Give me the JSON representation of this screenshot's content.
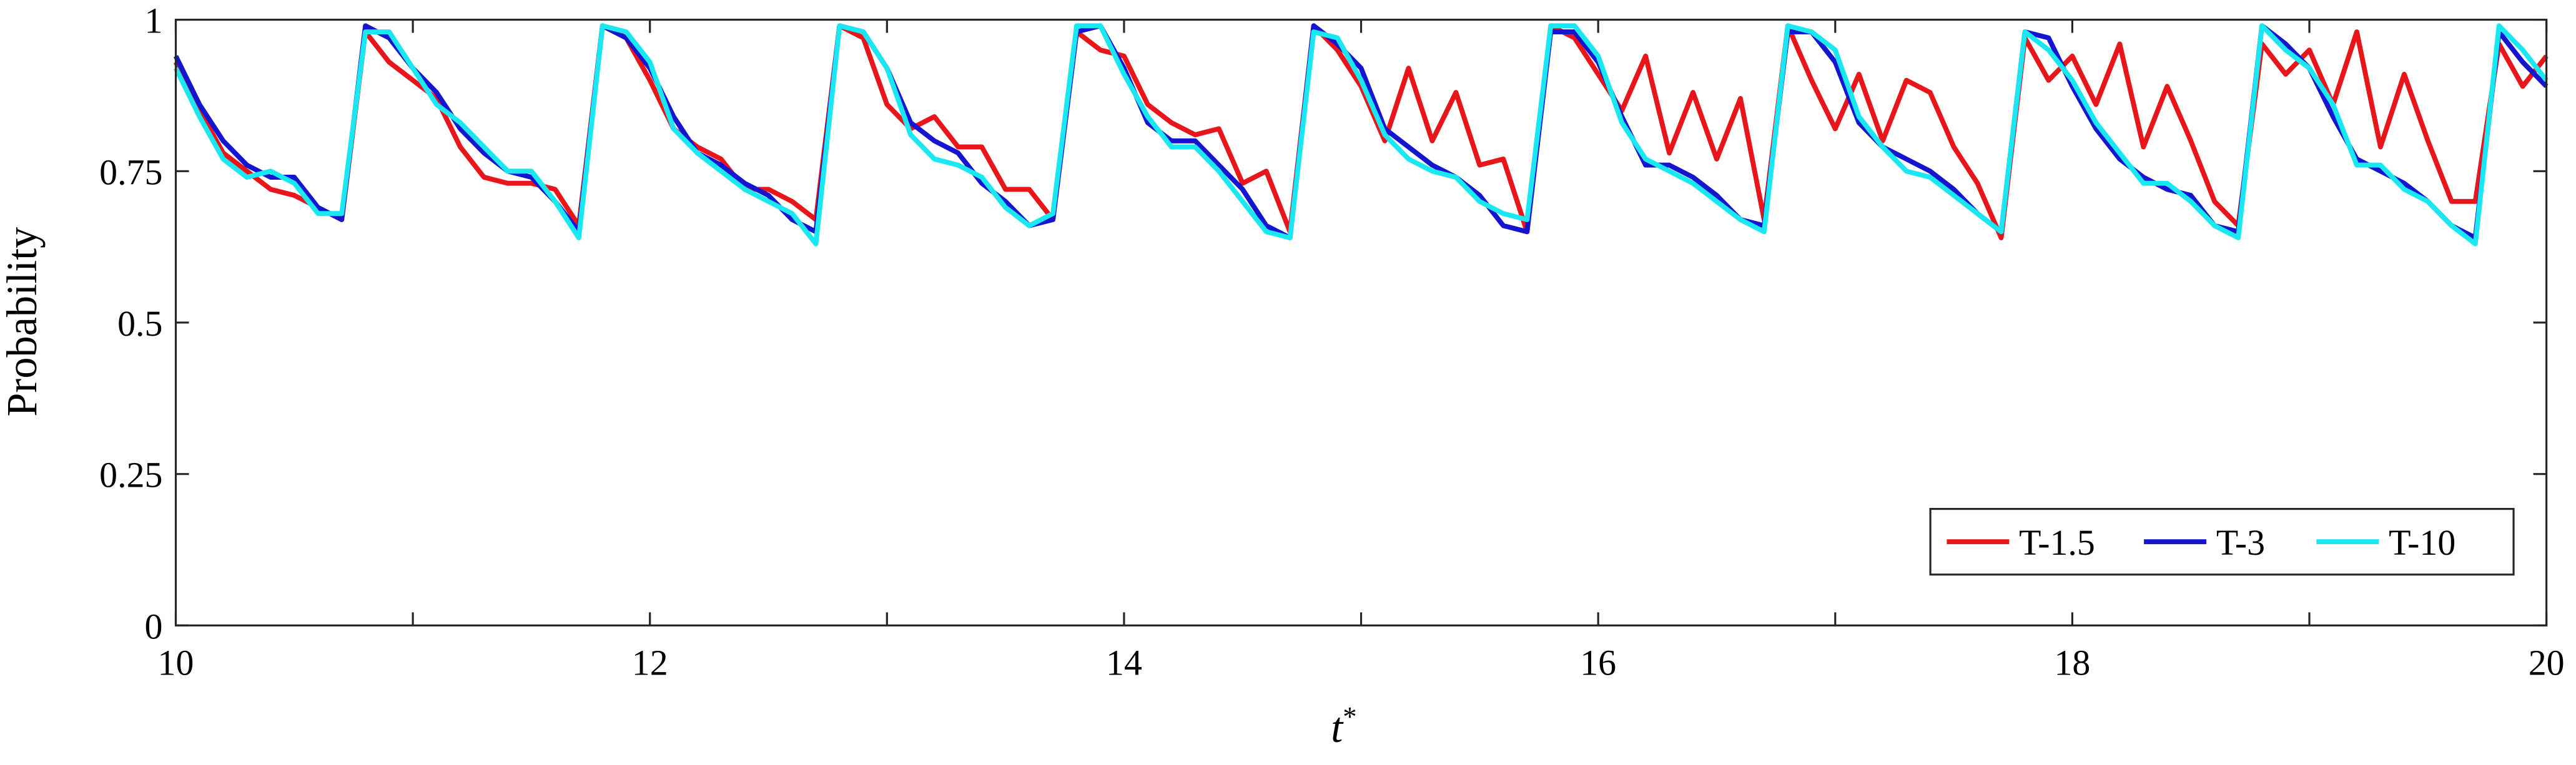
{
  "chart_data": {
    "type": "line",
    "xlabel": "t",
    "xlabel_superscript": "*",
    "ylabel": "Probability",
    "xlim": [
      10,
      20
    ],
    "ylim": [
      0,
      1
    ],
    "xticks": [
      10,
      12,
      14,
      16,
      18,
      20
    ],
    "xminorticks": [
      11,
      13,
      15,
      17,
      19
    ],
    "yticks": [
      0,
      0.25,
      0.5,
      0.75,
      1
    ],
    "legend": "lower right",
    "x": [
      10,
      10.1,
      10.2,
      10.3,
      10.4,
      10.5,
      10.6,
      10.7,
      10.8,
      10.9,
      11,
      11.1,
      11.2,
      11.3,
      11.4,
      11.5,
      11.6,
      11.7,
      11.8,
      11.9,
      12,
      12.1,
      12.2,
      12.3,
      12.4,
      12.5,
      12.6,
      12.7,
      12.8,
      12.9,
      13,
      13.1,
      13.2,
      13.3,
      13.4,
      13.5,
      13.6,
      13.7,
      13.8,
      13.9,
      14,
      14.1,
      14.2,
      14.3,
      14.4,
      14.5,
      14.6,
      14.7,
      14.8,
      14.9,
      15,
      15.1,
      15.2,
      15.3,
      15.4,
      15.5,
      15.6,
      15.7,
      15.8,
      15.9,
      16,
      16.1,
      16.2,
      16.3,
      16.4,
      16.5,
      16.6,
      16.7,
      16.8,
      16.9,
      17,
      17.1,
      17.2,
      17.3,
      17.4,
      17.5,
      17.6,
      17.7,
      17.8,
      17.9,
      18,
      18.1,
      18.2,
      18.3,
      18.4,
      18.5,
      18.6,
      18.7,
      18.8,
      18.9,
      19,
      19.1,
      19.2,
      19.3,
      19.4,
      19.5,
      19.6,
      19.7,
      19.8,
      19.9,
      20
    ],
    "series": [
      {
        "name": "T-1.5",
        "color": "#e8161b",
        "values": [
          0.93,
          0.85,
          0.78,
          0.75,
          0.72,
          0.71,
          0.69,
          0.67,
          0.98,
          0.93,
          0.9,
          0.87,
          0.79,
          0.74,
          0.73,
          0.73,
          0.72,
          0.66,
          0.99,
          0.97,
          0.9,
          0.82,
          0.79,
          0.77,
          0.72,
          0.72,
          0.7,
          0.67,
          0.99,
          0.97,
          0.86,
          0.82,
          0.84,
          0.79,
          0.79,
          0.72,
          0.72,
          0.67,
          0.98,
          0.95,
          0.94,
          0.86,
          0.83,
          0.81,
          0.82,
          0.73,
          0.75,
          0.65,
          0.99,
          0.95,
          0.89,
          0.8,
          0.92,
          0.8,
          0.88,
          0.76,
          0.77,
          0.65,
          0.99,
          0.97,
          0.91,
          0.85,
          0.94,
          0.78,
          0.88,
          0.77,
          0.87,
          0.67,
          0.99,
          0.9,
          0.82,
          0.91,
          0.8,
          0.9,
          0.88,
          0.79,
          0.73,
          0.64,
          0.97,
          0.9,
          0.94,
          0.86,
          0.96,
          0.79,
          0.89,
          0.8,
          0.7,
          0.66,
          0.96,
          0.91,
          0.95,
          0.86,
          0.98,
          0.79,
          0.91,
          0.8,
          0.7,
          0.7,
          0.96,
          0.89,
          0.94
        ]
      },
      {
        "name": "T-3",
        "color": "#1515d0",
        "values": [
          0.94,
          0.86,
          0.8,
          0.76,
          0.74,
          0.74,
          0.69,
          0.67,
          0.99,
          0.97,
          0.92,
          0.88,
          0.82,
          0.78,
          0.75,
          0.74,
          0.7,
          0.65,
          0.99,
          0.97,
          0.92,
          0.84,
          0.78,
          0.76,
          0.73,
          0.71,
          0.67,
          0.65,
          0.99,
          0.98,
          0.92,
          0.83,
          0.8,
          0.78,
          0.73,
          0.7,
          0.66,
          0.67,
          0.98,
          0.99,
          0.92,
          0.83,
          0.8,
          0.8,
          0.76,
          0.72,
          0.66,
          0.64,
          0.99,
          0.96,
          0.92,
          0.82,
          0.79,
          0.76,
          0.74,
          0.71,
          0.66,
          0.65,
          0.98,
          0.98,
          0.93,
          0.84,
          0.76,
          0.76,
          0.74,
          0.71,
          0.67,
          0.66,
          0.98,
          0.98,
          0.93,
          0.83,
          0.79,
          0.77,
          0.75,
          0.72,
          0.68,
          0.65,
          0.98,
          0.97,
          0.89,
          0.82,
          0.77,
          0.74,
          0.72,
          0.71,
          0.66,
          0.65,
          0.99,
          0.96,
          0.92,
          0.84,
          0.77,
          0.75,
          0.73,
          0.7,
          0.66,
          0.64,
          0.98,
          0.93,
          0.89
        ]
      },
      {
        "name": "T-10",
        "color": "#19e8f2",
        "values": [
          0.92,
          0.84,
          0.77,
          0.74,
          0.75,
          0.73,
          0.68,
          0.68,
          0.98,
          0.98,
          0.92,
          0.86,
          0.83,
          0.79,
          0.75,
          0.75,
          0.7,
          0.64,
          0.99,
          0.98,
          0.93,
          0.82,
          0.78,
          0.75,
          0.72,
          0.7,
          0.68,
          0.63,
          0.99,
          0.98,
          0.92,
          0.81,
          0.77,
          0.76,
          0.74,
          0.69,
          0.66,
          0.68,
          0.99,
          0.99,
          0.91,
          0.84,
          0.79,
          0.79,
          0.75,
          0.7,
          0.65,
          0.64,
          0.98,
          0.97,
          0.9,
          0.81,
          0.77,
          0.75,
          0.74,
          0.7,
          0.68,
          0.67,
          0.99,
          0.99,
          0.94,
          0.83,
          0.77,
          0.75,
          0.73,
          0.7,
          0.67,
          0.65,
          0.99,
          0.98,
          0.95,
          0.84,
          0.79,
          0.75,
          0.74,
          0.71,
          0.68,
          0.65,
          0.98,
          0.95,
          0.9,
          0.83,
          0.78,
          0.73,
          0.73,
          0.7,
          0.66,
          0.64,
          0.99,
          0.95,
          0.92,
          0.86,
          0.76,
          0.76,
          0.72,
          0.7,
          0.66,
          0.63,
          0.99,
          0.95,
          0.9
        ]
      }
    ]
  }
}
